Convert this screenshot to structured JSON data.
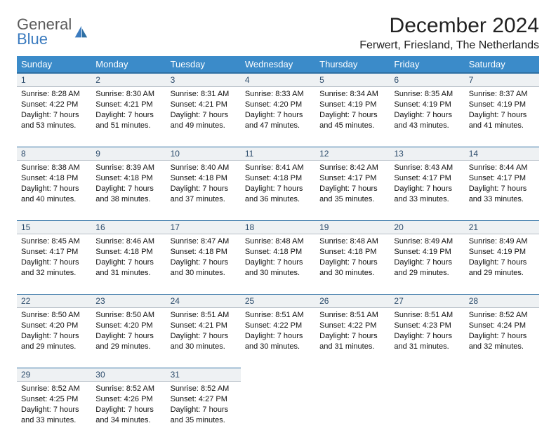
{
  "brand": {
    "general": "General",
    "blue": "Blue"
  },
  "title": "December 2024",
  "location": "Ferwert, Friesland, The Netherlands",
  "colors": {
    "header_bg": "#3b8bc9",
    "header_border": "#2e6fa3",
    "daynum_bg": "#eef1f3",
    "logo_gray": "#5a5a5a",
    "logo_blue": "#3b7bbf"
  },
  "weekdays": [
    "Sunday",
    "Monday",
    "Tuesday",
    "Wednesday",
    "Thursday",
    "Friday",
    "Saturday"
  ],
  "weeks": [
    [
      {
        "n": "1",
        "sr": "8:28 AM",
        "ss": "4:22 PM",
        "dl": "7 hours and 53 minutes."
      },
      {
        "n": "2",
        "sr": "8:30 AM",
        "ss": "4:21 PM",
        "dl": "7 hours and 51 minutes."
      },
      {
        "n": "3",
        "sr": "8:31 AM",
        "ss": "4:21 PM",
        "dl": "7 hours and 49 minutes."
      },
      {
        "n": "4",
        "sr": "8:33 AM",
        "ss": "4:20 PM",
        "dl": "7 hours and 47 minutes."
      },
      {
        "n": "5",
        "sr": "8:34 AM",
        "ss": "4:19 PM",
        "dl": "7 hours and 45 minutes."
      },
      {
        "n": "6",
        "sr": "8:35 AM",
        "ss": "4:19 PM",
        "dl": "7 hours and 43 minutes."
      },
      {
        "n": "7",
        "sr": "8:37 AM",
        "ss": "4:19 PM",
        "dl": "7 hours and 41 minutes."
      }
    ],
    [
      {
        "n": "8",
        "sr": "8:38 AM",
        "ss": "4:18 PM",
        "dl": "7 hours and 40 minutes."
      },
      {
        "n": "9",
        "sr": "8:39 AM",
        "ss": "4:18 PM",
        "dl": "7 hours and 38 minutes."
      },
      {
        "n": "10",
        "sr": "8:40 AM",
        "ss": "4:18 PM",
        "dl": "7 hours and 37 minutes."
      },
      {
        "n": "11",
        "sr": "8:41 AM",
        "ss": "4:18 PM",
        "dl": "7 hours and 36 minutes."
      },
      {
        "n": "12",
        "sr": "8:42 AM",
        "ss": "4:17 PM",
        "dl": "7 hours and 35 minutes."
      },
      {
        "n": "13",
        "sr": "8:43 AM",
        "ss": "4:17 PM",
        "dl": "7 hours and 33 minutes."
      },
      {
        "n": "14",
        "sr": "8:44 AM",
        "ss": "4:17 PM",
        "dl": "7 hours and 33 minutes."
      }
    ],
    [
      {
        "n": "15",
        "sr": "8:45 AM",
        "ss": "4:17 PM",
        "dl": "7 hours and 32 minutes."
      },
      {
        "n": "16",
        "sr": "8:46 AM",
        "ss": "4:18 PM",
        "dl": "7 hours and 31 minutes."
      },
      {
        "n": "17",
        "sr": "8:47 AM",
        "ss": "4:18 PM",
        "dl": "7 hours and 30 minutes."
      },
      {
        "n": "18",
        "sr": "8:48 AM",
        "ss": "4:18 PM",
        "dl": "7 hours and 30 minutes."
      },
      {
        "n": "19",
        "sr": "8:48 AM",
        "ss": "4:18 PM",
        "dl": "7 hours and 30 minutes."
      },
      {
        "n": "20",
        "sr": "8:49 AM",
        "ss": "4:19 PM",
        "dl": "7 hours and 29 minutes."
      },
      {
        "n": "21",
        "sr": "8:49 AM",
        "ss": "4:19 PM",
        "dl": "7 hours and 29 minutes."
      }
    ],
    [
      {
        "n": "22",
        "sr": "8:50 AM",
        "ss": "4:20 PM",
        "dl": "7 hours and 29 minutes."
      },
      {
        "n": "23",
        "sr": "8:50 AM",
        "ss": "4:20 PM",
        "dl": "7 hours and 29 minutes."
      },
      {
        "n": "24",
        "sr": "8:51 AM",
        "ss": "4:21 PM",
        "dl": "7 hours and 30 minutes."
      },
      {
        "n": "25",
        "sr": "8:51 AM",
        "ss": "4:22 PM",
        "dl": "7 hours and 30 minutes."
      },
      {
        "n": "26",
        "sr": "8:51 AM",
        "ss": "4:22 PM",
        "dl": "7 hours and 31 minutes."
      },
      {
        "n": "27",
        "sr": "8:51 AM",
        "ss": "4:23 PM",
        "dl": "7 hours and 31 minutes."
      },
      {
        "n": "28",
        "sr": "8:52 AM",
        "ss": "4:24 PM",
        "dl": "7 hours and 32 minutes."
      }
    ],
    [
      {
        "n": "29",
        "sr": "8:52 AM",
        "ss": "4:25 PM",
        "dl": "7 hours and 33 minutes."
      },
      {
        "n": "30",
        "sr": "8:52 AM",
        "ss": "4:26 PM",
        "dl": "7 hours and 34 minutes."
      },
      {
        "n": "31",
        "sr": "8:52 AM",
        "ss": "4:27 PM",
        "dl": "7 hours and 35 minutes."
      },
      null,
      null,
      null,
      null
    ]
  ],
  "labels": {
    "sunrise": "Sunrise:",
    "sunset": "Sunset:",
    "daylight": "Daylight:"
  }
}
